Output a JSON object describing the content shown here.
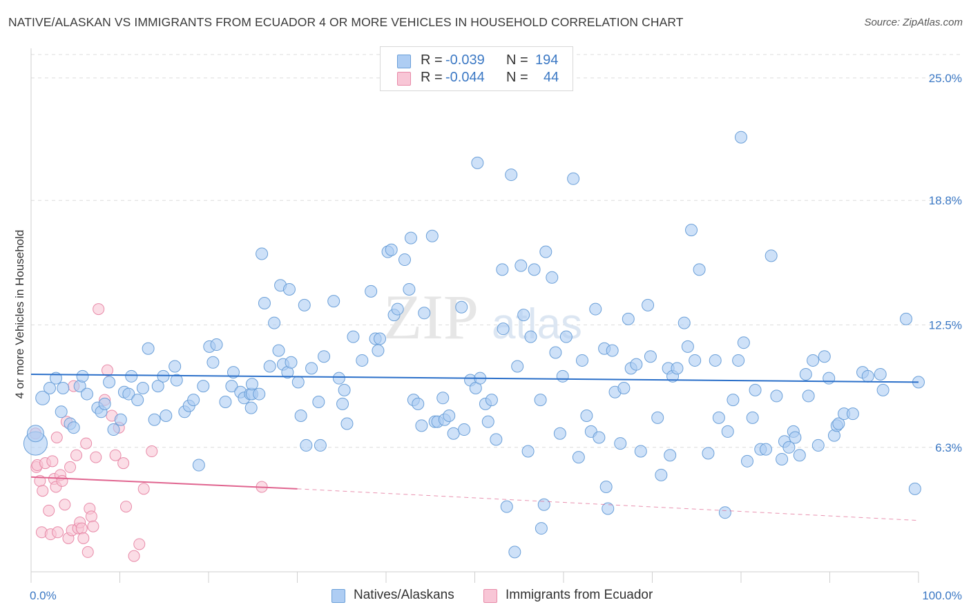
{
  "header": {
    "title": "NATIVE/ALASKAN VS IMMIGRANTS FROM ECUADOR 4 OR MORE VEHICLES IN HOUSEHOLD CORRELATION CHART",
    "source": "Source: ZipAtlas.com"
  },
  "watermark": {
    "zip": "ZIP",
    "atlas": "atlas"
  },
  "legend": {
    "rows": [
      {
        "r_label": "R =",
        "r_value": "-0.039",
        "n_label": "N =",
        "n_value": "194",
        "color": "#aecdf3",
        "stroke": "#6a9fd8"
      },
      {
        "r_label": "R =",
        "r_value": "-0.044",
        "n_label": "N =",
        "n_value": "44",
        "color": "#f8c6d6",
        "stroke": "#e88aa8"
      }
    ]
  },
  "bottom_legend": {
    "natives": "Natives/Alaskans",
    "ecuador": "Immigrants from Ecuador"
  },
  "chart_data": {
    "type": "scatter",
    "ylabel": "4 or more Vehicles in Household",
    "xlim": [
      0,
      100
    ],
    "ylim": [
      0,
      26.5
    ],
    "x_tick_labels": [
      "0.0%",
      "100.0%"
    ],
    "y_ticks": [
      6.3,
      12.5,
      18.8,
      25.0
    ],
    "y_tick_labels": [
      "6.3%",
      "12.5%",
      "18.8%",
      "25.0%"
    ],
    "grid": true,
    "legend_position": "top-center",
    "colors": {
      "natives": "#aecdf3",
      "natives_stroke": "#6a9fd8",
      "natives_line": "#2a6fc9",
      "ecuador": "#f8c6d6",
      "ecuador_stroke": "#e88aa8",
      "ecuador_line": "#e0648f"
    },
    "series": [
      {
        "name": "Natives/Alaskans",
        "trend": {
          "x0": 0,
          "y0": 10.0,
          "x1": 100,
          "y1": 9.6
        },
        "points": [
          [
            0.5,
            6.5
          ],
          [
            0.5,
            7.0
          ],
          [
            1.3,
            8.8
          ],
          [
            2.1,
            9.3
          ],
          [
            2.8,
            9.8
          ],
          [
            3.4,
            8.1
          ],
          [
            3.6,
            9.3
          ],
          [
            4.4,
            7.5
          ],
          [
            4.8,
            7.3
          ],
          [
            5.5,
            9.4
          ],
          [
            5.8,
            9.9
          ],
          [
            6.3,
            9.0
          ],
          [
            7.5,
            8.3
          ],
          [
            7.9,
            8.1
          ],
          [
            8.3,
            8.5
          ],
          [
            8.8,
            9.6
          ],
          [
            9.3,
            7.2
          ],
          [
            10.1,
            7.7
          ],
          [
            10.5,
            9.1
          ],
          [
            11.0,
            9.0
          ],
          [
            11.3,
            9.9
          ],
          [
            12.0,
            8.7
          ],
          [
            12.6,
            9.3
          ],
          [
            13.2,
            11.3
          ],
          [
            13.9,
            7.7
          ],
          [
            14.3,
            9.4
          ],
          [
            14.9,
            9.9
          ],
          [
            15.2,
            7.9
          ],
          [
            16.2,
            10.4
          ],
          [
            16.4,
            9.7
          ],
          [
            17.3,
            8.1
          ],
          [
            17.8,
            8.4
          ],
          [
            18.3,
            8.7
          ],
          [
            18.9,
            5.4
          ],
          [
            19.4,
            9.4
          ],
          [
            20.1,
            11.4
          ],
          [
            20.5,
            10.6
          ],
          [
            20.9,
            11.5
          ],
          [
            21.9,
            8.6
          ],
          [
            22.6,
            9.4
          ],
          [
            22.8,
            10.1
          ],
          [
            23.6,
            9.1
          ],
          [
            24.0,
            8.8
          ],
          [
            24.7,
            9.0
          ],
          [
            24.8,
            8.3
          ],
          [
            24.9,
            9.0
          ],
          [
            24.9,
            9.5
          ],
          [
            25.7,
            9.0
          ],
          [
            26.0,
            16.1
          ],
          [
            26.3,
            13.6
          ],
          [
            26.9,
            10.4
          ],
          [
            27.4,
            12.6
          ],
          [
            27.9,
            11.2
          ],
          [
            28.1,
            14.5
          ],
          [
            28.4,
            10.5
          ],
          [
            28.9,
            10.1
          ],
          [
            29.1,
            14.3
          ],
          [
            29.3,
            10.6
          ],
          [
            30.1,
            9.6
          ],
          [
            30.4,
            7.9
          ],
          [
            30.8,
            13.5
          ],
          [
            31.0,
            6.4
          ],
          [
            31.6,
            10.3
          ],
          [
            32.4,
            8.6
          ],
          [
            32.6,
            6.4
          ],
          [
            33.0,
            10.9
          ],
          [
            34.1,
            13.7
          ],
          [
            34.7,
            9.8
          ],
          [
            35.1,
            8.5
          ],
          [
            35.3,
            9.2
          ],
          [
            35.6,
            7.5
          ],
          [
            36.3,
            11.9
          ],
          [
            37.3,
            10.7
          ],
          [
            38.3,
            14.2
          ],
          [
            38.8,
            11.8
          ],
          [
            39.1,
            11.2
          ],
          [
            39.3,
            11.8
          ],
          [
            40.2,
            16.2
          ],
          [
            40.6,
            16.3
          ],
          [
            40.9,
            13.0
          ],
          [
            41.3,
            13.3
          ],
          [
            42.1,
            15.8
          ],
          [
            42.6,
            14.3
          ],
          [
            42.8,
            16.9
          ],
          [
            43.1,
            8.7
          ],
          [
            43.6,
            8.5
          ],
          [
            44.0,
            7.4
          ],
          [
            44.3,
            13.1
          ],
          [
            45.2,
            17.0
          ],
          [
            45.5,
            7.6
          ],
          [
            45.8,
            7.6
          ],
          [
            46.4,
            8.8
          ],
          [
            46.6,
            7.7
          ],
          [
            47.1,
            7.9
          ],
          [
            47.6,
            7.0
          ],
          [
            48.5,
            13.4
          ],
          [
            48.8,
            7.2
          ],
          [
            49.5,
            9.7
          ],
          [
            50.1,
            9.3
          ],
          [
            50.3,
            20.7
          ],
          [
            50.6,
            9.8
          ],
          [
            51.2,
            8.5
          ],
          [
            51.5,
            7.6
          ],
          [
            51.9,
            8.7
          ],
          [
            52.4,
            6.7
          ],
          [
            53.1,
            15.3
          ],
          [
            53.2,
            12.3
          ],
          [
            53.6,
            3.3
          ],
          [
            54.1,
            20.1
          ],
          [
            54.5,
            1.0
          ],
          [
            54.8,
            10.4
          ],
          [
            55.2,
            15.5
          ],
          [
            55.5,
            13.0
          ],
          [
            56.0,
            6.1
          ],
          [
            56.3,
            11.9
          ],
          [
            56.7,
            15.3
          ],
          [
            57.4,
            8.7
          ],
          [
            57.5,
            2.2
          ],
          [
            57.8,
            3.4
          ],
          [
            58.0,
            16.2
          ],
          [
            58.7,
            14.9
          ],
          [
            59.1,
            11.1
          ],
          [
            59.6,
            7.0
          ],
          [
            59.9,
            9.9
          ],
          [
            60.3,
            11.9
          ],
          [
            61.1,
            19.9
          ],
          [
            61.7,
            5.8
          ],
          [
            62.1,
            10.7
          ],
          [
            62.6,
            7.9
          ],
          [
            63.1,
            7.1
          ],
          [
            63.6,
            13.3
          ],
          [
            64.0,
            6.8
          ],
          [
            64.6,
            11.3
          ],
          [
            64.8,
            4.3
          ],
          [
            65.0,
            3.2
          ],
          [
            65.5,
            11.2
          ],
          [
            65.8,
            9.1
          ],
          [
            66.4,
            6.5
          ],
          [
            66.8,
            9.3
          ],
          [
            67.3,
            12.8
          ],
          [
            67.6,
            10.3
          ],
          [
            68.2,
            10.5
          ],
          [
            68.7,
            6.1
          ],
          [
            69.5,
            13.5
          ],
          [
            69.8,
            10.9
          ],
          [
            70.6,
            7.8
          ],
          [
            71.0,
            4.9
          ],
          [
            71.8,
            10.3
          ],
          [
            72.0,
            5.9
          ],
          [
            72.3,
            9.9
          ],
          [
            72.8,
            10.3
          ],
          [
            73.6,
            12.6
          ],
          [
            74.0,
            11.4
          ],
          [
            74.4,
            17.3
          ],
          [
            74.8,
            10.7
          ],
          [
            75.3,
            15.3
          ],
          [
            76.3,
            6.0
          ],
          [
            77.1,
            10.7
          ],
          [
            77.5,
            7.8
          ],
          [
            78.2,
            3.0
          ],
          [
            78.5,
            7.1
          ],
          [
            79.1,
            8.7
          ],
          [
            79.7,
            10.7
          ],
          [
            80.0,
            22.0
          ],
          [
            80.3,
            11.6
          ],
          [
            80.7,
            5.6
          ],
          [
            81.3,
            7.8
          ],
          [
            81.6,
            9.2
          ],
          [
            82.2,
            6.2
          ],
          [
            82.8,
            6.2
          ],
          [
            83.4,
            16.0
          ],
          [
            84.0,
            8.9
          ],
          [
            84.6,
            5.7
          ],
          [
            84.9,
            6.6
          ],
          [
            85.4,
            6.3
          ],
          [
            85.9,
            7.1
          ],
          [
            86.1,
            6.8
          ],
          [
            86.6,
            5.9
          ],
          [
            87.3,
            10.0
          ],
          [
            87.6,
            8.9
          ],
          [
            88.1,
            10.7
          ],
          [
            88.7,
            6.4
          ],
          [
            89.4,
            10.9
          ],
          [
            89.9,
            9.8
          ],
          [
            90.5,
            6.9
          ],
          [
            90.8,
            7.4
          ],
          [
            91.0,
            7.5
          ],
          [
            91.6,
            8.0
          ],
          [
            92.6,
            8.0
          ],
          [
            93.7,
            10.1
          ],
          [
            94.3,
            9.9
          ],
          [
            95.7,
            10.0
          ],
          [
            96.0,
            9.2
          ],
          [
            98.6,
            12.8
          ],
          [
            99.6,
            4.2
          ],
          [
            100.0,
            9.6
          ]
        ]
      },
      {
        "name": "Immigrants from Ecuador",
        "trend": {
          "x0": 0,
          "y0": 4.8,
          "x1": 30,
          "y1": 4.2,
          "dash_x1": 100,
          "dash_y1": 2.6
        },
        "points": [
          [
            0.5,
            7.0
          ],
          [
            0.6,
            5.3
          ],
          [
            0.7,
            5.4
          ],
          [
            1.0,
            4.6
          ],
          [
            1.2,
            2.0
          ],
          [
            1.3,
            4.1
          ],
          [
            1.6,
            5.5
          ],
          [
            2.0,
            3.1
          ],
          [
            2.2,
            1.9
          ],
          [
            2.4,
            5.6
          ],
          [
            2.6,
            4.7
          ],
          [
            2.8,
            4.3
          ],
          [
            2.9,
            6.8
          ],
          [
            3.0,
            2.0
          ],
          [
            3.3,
            4.9
          ],
          [
            3.5,
            4.6
          ],
          [
            3.8,
            3.4
          ],
          [
            4.0,
            7.6
          ],
          [
            4.2,
            1.7
          ],
          [
            4.4,
            5.3
          ],
          [
            4.6,
            2.1
          ],
          [
            4.8,
            9.4
          ],
          [
            5.1,
            5.9
          ],
          [
            5.3,
            2.2
          ],
          [
            5.5,
            2.5
          ],
          [
            5.7,
            2.2
          ],
          [
            5.9,
            1.7
          ],
          [
            6.2,
            6.5
          ],
          [
            6.4,
            1.0
          ],
          [
            6.6,
            3.2
          ],
          [
            6.8,
            2.8
          ],
          [
            7.0,
            2.3
          ],
          [
            7.3,
            5.8
          ],
          [
            7.6,
            13.3
          ],
          [
            8.3,
            8.7
          ],
          [
            8.6,
            10.2
          ],
          [
            9.1,
            7.9
          ],
          [
            9.5,
            5.9
          ],
          [
            9.9,
            7.3
          ],
          [
            10.4,
            5.5
          ],
          [
            10.7,
            3.3
          ],
          [
            11.6,
            0.8
          ],
          [
            12.2,
            1.4
          ],
          [
            12.7,
            4.2
          ],
          [
            13.6,
            6.1
          ],
          [
            26.0,
            4.3
          ]
        ]
      }
    ]
  }
}
